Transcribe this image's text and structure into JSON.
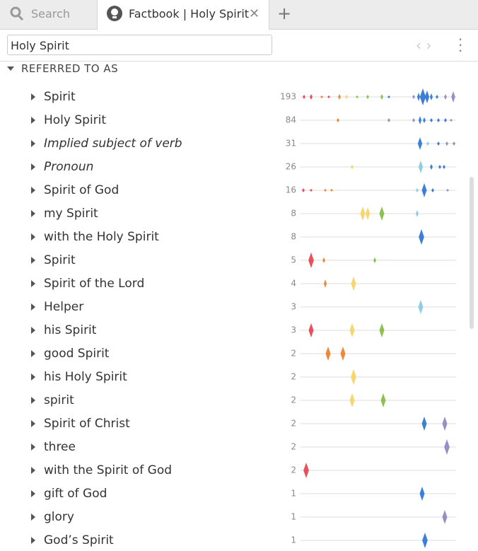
{
  "tabs": [
    {
      "label": "Search"
    },
    {
      "label": "Factbook | Holy Spirit"
    }
  ],
  "search_field": {
    "value": "Holy Spirit"
  },
  "section": {
    "title": "REFERRED TO AS"
  },
  "rows": [
    {
      "label": "Spirit",
      "count": 193
    },
    {
      "label": "Holy Spirit",
      "count": 84
    },
    {
      "label": "Implied subject of verb",
      "count": 31,
      "italic": true
    },
    {
      "label": "Pronoun",
      "count": 26,
      "italic": true
    },
    {
      "label": "Spirit of God",
      "count": 16
    },
    {
      "label": "my Spirit",
      "count": 8
    },
    {
      "label": "with the Holy Spirit",
      "count": 8
    },
    {
      "label": "Spirit",
      "count": 5
    },
    {
      "label": "Spirit of the Lord",
      "count": 4
    },
    {
      "label": "Helper",
      "count": 3
    },
    {
      "label": "his Spirit",
      "count": 3
    },
    {
      "label": "good Spirit",
      "count": 2
    },
    {
      "label": "his Holy Spirit",
      "count": 2
    },
    {
      "label": "spirit",
      "count": 2
    },
    {
      "label": "Spirit of Christ",
      "count": 2
    },
    {
      "label": "three",
      "count": 2
    },
    {
      "label": "with the Spirit of God",
      "count": 2
    },
    {
      "label": "gift of God",
      "count": 1
    },
    {
      "label": "glory",
      "count": 1
    },
    {
      "label": "God’s Spirit",
      "count": 1
    }
  ]
}
